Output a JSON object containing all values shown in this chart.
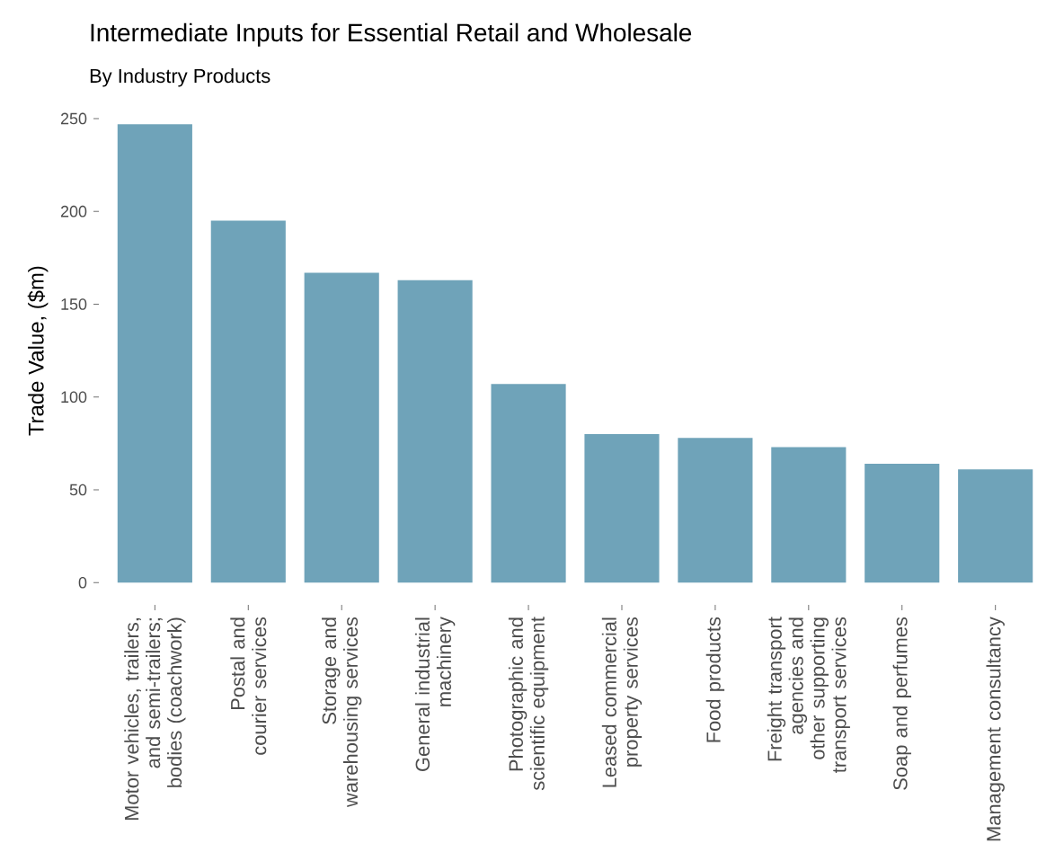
{
  "chart_data": {
    "type": "bar",
    "title": "Intermediate Inputs for Essential Retail and Wholesale",
    "subtitle": "By Industry Products",
    "ylabel": "Trade Value, ($m)",
    "categories": [
      "Motor vehicles, trailers, and semi-trailers; bodies (coachwork)",
      "Postal and courier services",
      "Storage and warehousing services",
      "General industrial machinery",
      "Photographic and scientific equipment",
      "Leased commercial property services",
      "Food products",
      "Freight transport agencies and other supporting transport services",
      "Soap and perfumes",
      "Management consultancy"
    ],
    "values": [
      247,
      195,
      167,
      163,
      107,
      80,
      78,
      73,
      64,
      61
    ],
    "color": "#6fa3b9",
    "ylim": [
      0,
      250
    ],
    "yticks": [
      0,
      50,
      100,
      150,
      200,
      250
    ],
    "grid": false
  }
}
